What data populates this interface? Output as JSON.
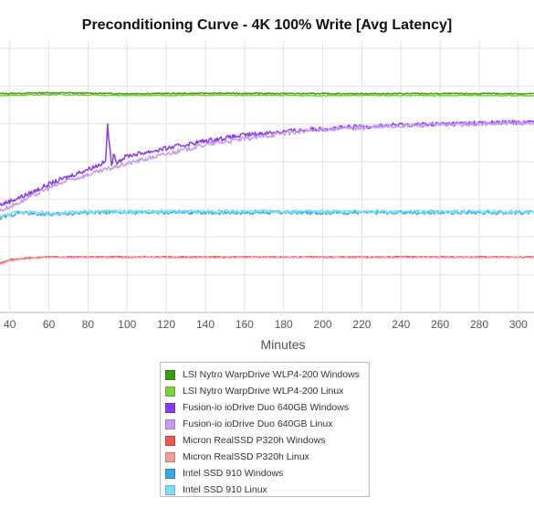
{
  "chart_data": {
    "type": "line",
    "title": "Preconditioning Curve - 4K 100% Write [Avg Latency]",
    "xlabel": "Minutes",
    "ylabel": "",
    "xlim": [
      35,
      308
    ],
    "ylim": [
      0,
      14
    ],
    "x_ticks": [
      40,
      60,
      80,
      100,
      120,
      140,
      160,
      180,
      200,
      220,
      240,
      260,
      280,
      300
    ],
    "grid": true,
    "legend_position": "bottom",
    "series": [
      {
        "name": "LSI Nytro WarpDrive WLP4-200 Windows",
        "color": "#3e9a0e",
        "x": [
          35,
          60,
          100,
          150,
          200,
          250,
          308
        ],
        "y": [
          11.6,
          11.65,
          11.6,
          11.62,
          11.6,
          11.6,
          11.6
        ]
      },
      {
        "name": "LSI Nytro WarpDrive WLP4-200 Linux",
        "color": "#7bd13a",
        "x": [
          35,
          60,
          100,
          150,
          200,
          250,
          308
        ],
        "y": [
          11.5,
          11.55,
          11.5,
          11.52,
          11.5,
          11.5,
          11.5
        ]
      },
      {
        "name": "Fusion-io ioDrive Duo 640GB Windows",
        "color": "#8a3df0",
        "x": [
          35,
          40,
          50,
          60,
          70,
          80,
          85,
          89,
          90,
          91,
          92,
          93,
          95,
          100,
          120,
          140,
          160,
          180,
          200,
          220,
          240,
          260,
          280,
          308
        ],
        "y": [
          5.7,
          5.9,
          6.3,
          6.8,
          7.2,
          7.6,
          7.8,
          8.0,
          10.0,
          8.8,
          7.8,
          8.3,
          8.0,
          8.3,
          8.7,
          9.1,
          9.4,
          9.6,
          9.75,
          9.85,
          9.95,
          10.0,
          10.05,
          10.1
        ]
      },
      {
        "name": "Fusion-io ioDrive Duo 640GB Linux",
        "color": "#c49af2",
        "x": [
          35,
          40,
          50,
          60,
          70,
          80,
          90,
          100,
          120,
          140,
          160,
          180,
          200,
          220,
          240,
          260,
          280,
          308
        ],
        "y": [
          5.4,
          5.6,
          6.1,
          6.6,
          7.0,
          7.3,
          7.6,
          7.9,
          8.4,
          8.9,
          9.2,
          9.5,
          9.7,
          9.8,
          9.9,
          9.95,
          10.0,
          10.05
        ]
      },
      {
        "name": "Micron RealSSD P320h Windows",
        "color": "#f0554e",
        "x": [
          35,
          40,
          50,
          60,
          80,
          100,
          150,
          200,
          250,
          308
        ],
        "y": [
          2.6,
          2.8,
          2.9,
          2.95,
          2.95,
          2.95,
          2.95,
          2.95,
          2.95,
          2.95
        ]
      },
      {
        "name": "Micron RealSSD P320h Linux",
        "color": "#f59a96",
        "x": [
          35,
          40,
          50,
          60,
          80,
          100,
          150,
          200,
          250,
          308
        ],
        "y": [
          2.55,
          2.75,
          2.87,
          2.92,
          2.92,
          2.92,
          2.92,
          2.92,
          2.92,
          2.92
        ]
      },
      {
        "name": "Intel SSD 910 Windows",
        "color": "#35a8e8",
        "x": [
          35,
          45,
          60,
          80,
          100,
          150,
          200,
          250,
          308
        ],
        "y": [
          5.0,
          5.3,
          5.2,
          5.3,
          5.3,
          5.3,
          5.3,
          5.3,
          5.3
        ]
      },
      {
        "name": "Intel SSD 910 Linux",
        "color": "#7fdcf7",
        "x": [
          35,
          45,
          60,
          80,
          100,
          150,
          200,
          250,
          308
        ],
        "y": [
          5.1,
          5.35,
          5.25,
          5.35,
          5.35,
          5.35,
          5.35,
          5.35,
          5.35
        ]
      }
    ]
  }
}
